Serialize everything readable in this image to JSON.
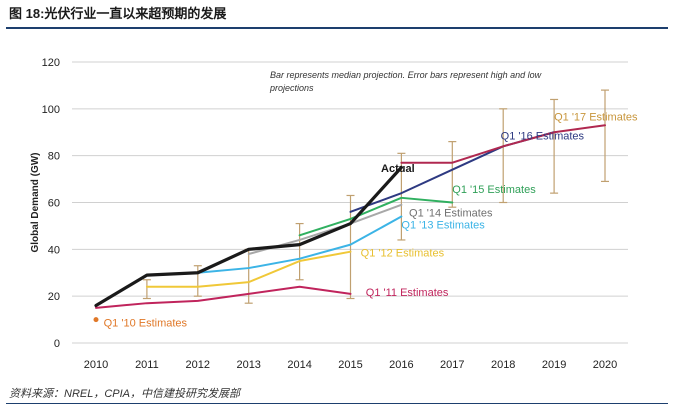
{
  "figure": {
    "title": "图 18:光伏行业一直以来超预期的发展",
    "source": "资料来源：NREL，CPIA，中信建投研究发展部",
    "colors": {
      "rule": "#1d3f6e"
    }
  },
  "chart_data": {
    "type": "line",
    "title": "",
    "xlabel": "",
    "ylabel": "Global Demand (GW)",
    "ylim": [
      0,
      120
    ],
    "yticks": [
      0,
      20,
      40,
      60,
      80,
      100,
      120
    ],
    "xticks": [
      2010,
      2011,
      2012,
      2013,
      2014,
      2015,
      2016,
      2017,
      2018,
      2019,
      2020
    ],
    "grid": true,
    "note": "Bar represents median projection. Error bars represent high and low projections",
    "series": [
      {
        "name": "Actual",
        "label": "Actual",
        "color": "#1a1a1a",
        "width": 3.2,
        "label_pos": [
          2015.6,
          73
        ],
        "label_color": "#1a1a1a",
        "x": [
          2010,
          2011,
          2012,
          2013,
          2014,
          2015,
          2016
        ],
        "y": [
          16,
          29,
          30,
          40,
          42,
          51,
          75
        ]
      },
      {
        "name": "Q1 '10 Estimates",
        "label": "Q1 '10 Estimates",
        "color": "#e07828",
        "width": 2,
        "label_pos": [
          2010.15,
          7
        ],
        "label_color": "#e07828",
        "x": [
          2010
        ],
        "y": [
          10
        ]
      },
      {
        "name": "Q1 '11 Estimates",
        "label": "Q1 '11 Estimates",
        "color": "#c0245c",
        "width": 2,
        "label_pos": [
          2015.3,
          20
        ],
        "label_color": "#c0245c",
        "x": [
          2010,
          2011,
          2012,
          2013,
          2014,
          2015
        ],
        "y": [
          15,
          17,
          18,
          21,
          24,
          21
        ]
      },
      {
        "name": "Q1 '12 Estimates",
        "label": "Q1 '12 Estimates",
        "color": "#f0c838",
        "width": 2,
        "label_pos": [
          2015.2,
          37
        ],
        "label_color": "#e8c030",
        "x": [
          2011,
          2012,
          2013,
          2014,
          2015
        ],
        "y": [
          24,
          24,
          26,
          35,
          39
        ]
      },
      {
        "name": "Q1 '13 Estimates",
        "label": "Q1 '13 Estimates",
        "color": "#3cb4e6",
        "width": 2,
        "label_pos": [
          2016.0,
          49
        ],
        "label_color": "#3cb4e6",
        "x": [
          2012,
          2013,
          2014,
          2015,
          2016
        ],
        "y": [
          30,
          32,
          36,
          42,
          54
        ]
      },
      {
        "name": "Q1 '14 Estimates",
        "label": "Q1 '14 Estimates",
        "color": "#a8a8a8",
        "width": 2,
        "label_pos": [
          2016.15,
          54
        ],
        "label_color": "#707070",
        "x": [
          2013,
          2014,
          2015,
          2016
        ],
        "y": [
          38,
          44,
          51,
          59
        ]
      },
      {
        "name": "Q1 '15 Estimates",
        "label": "Q1 '15 Estimates",
        "color": "#30b060",
        "width": 2,
        "label_pos": [
          2017.0,
          64
        ],
        "label_color": "#30a058",
        "x": [
          2014,
          2015,
          2016,
          2017
        ],
        "y": [
          46,
          53,
          62,
          60
        ]
      },
      {
        "name": "Q1 '16 Estimates",
        "label": "Q1 '16 Estimates",
        "color": "#2e3a82",
        "width": 2,
        "label_pos": [
          2017.95,
          87
        ],
        "label_color": "#2e3a82",
        "x": [
          2015,
          2016,
          2017,
          2018,
          2019
        ],
        "y": [
          56,
          64,
          74,
          84,
          90
        ]
      },
      {
        "name": "Q1 '17 Estimates",
        "label": "Q1 '17 Estimates",
        "color": "#b02850",
        "width": 2,
        "label_pos": [
          2019.0,
          95
        ],
        "label_color": "#c8963c",
        "x": [
          2016,
          2017,
          2018,
          2019,
          2020
        ],
        "y": [
          77,
          77,
          84,
          90,
          93
        ]
      }
    ],
    "error_bars": {
      "color": "#c0a070",
      "bars": [
        {
          "x": 2011,
          "low": 19,
          "high": 27
        },
        {
          "x": 2012,
          "low": 20,
          "high": 33
        },
        {
          "x": 2013,
          "low": 17,
          "high": 40
        },
        {
          "x": 2014,
          "low": 27,
          "high": 51
        },
        {
          "x": 2015,
          "low": 19,
          "high": 63
        },
        {
          "x": 2016,
          "low": 44,
          "high": 81
        },
        {
          "x": 2017,
          "low": 58,
          "high": 86
        },
        {
          "x": 2018,
          "low": 60,
          "high": 100
        },
        {
          "x": 2019,
          "low": 64,
          "high": 104
        },
        {
          "x": 2020,
          "low": 69,
          "high": 108
        }
      ]
    }
  }
}
